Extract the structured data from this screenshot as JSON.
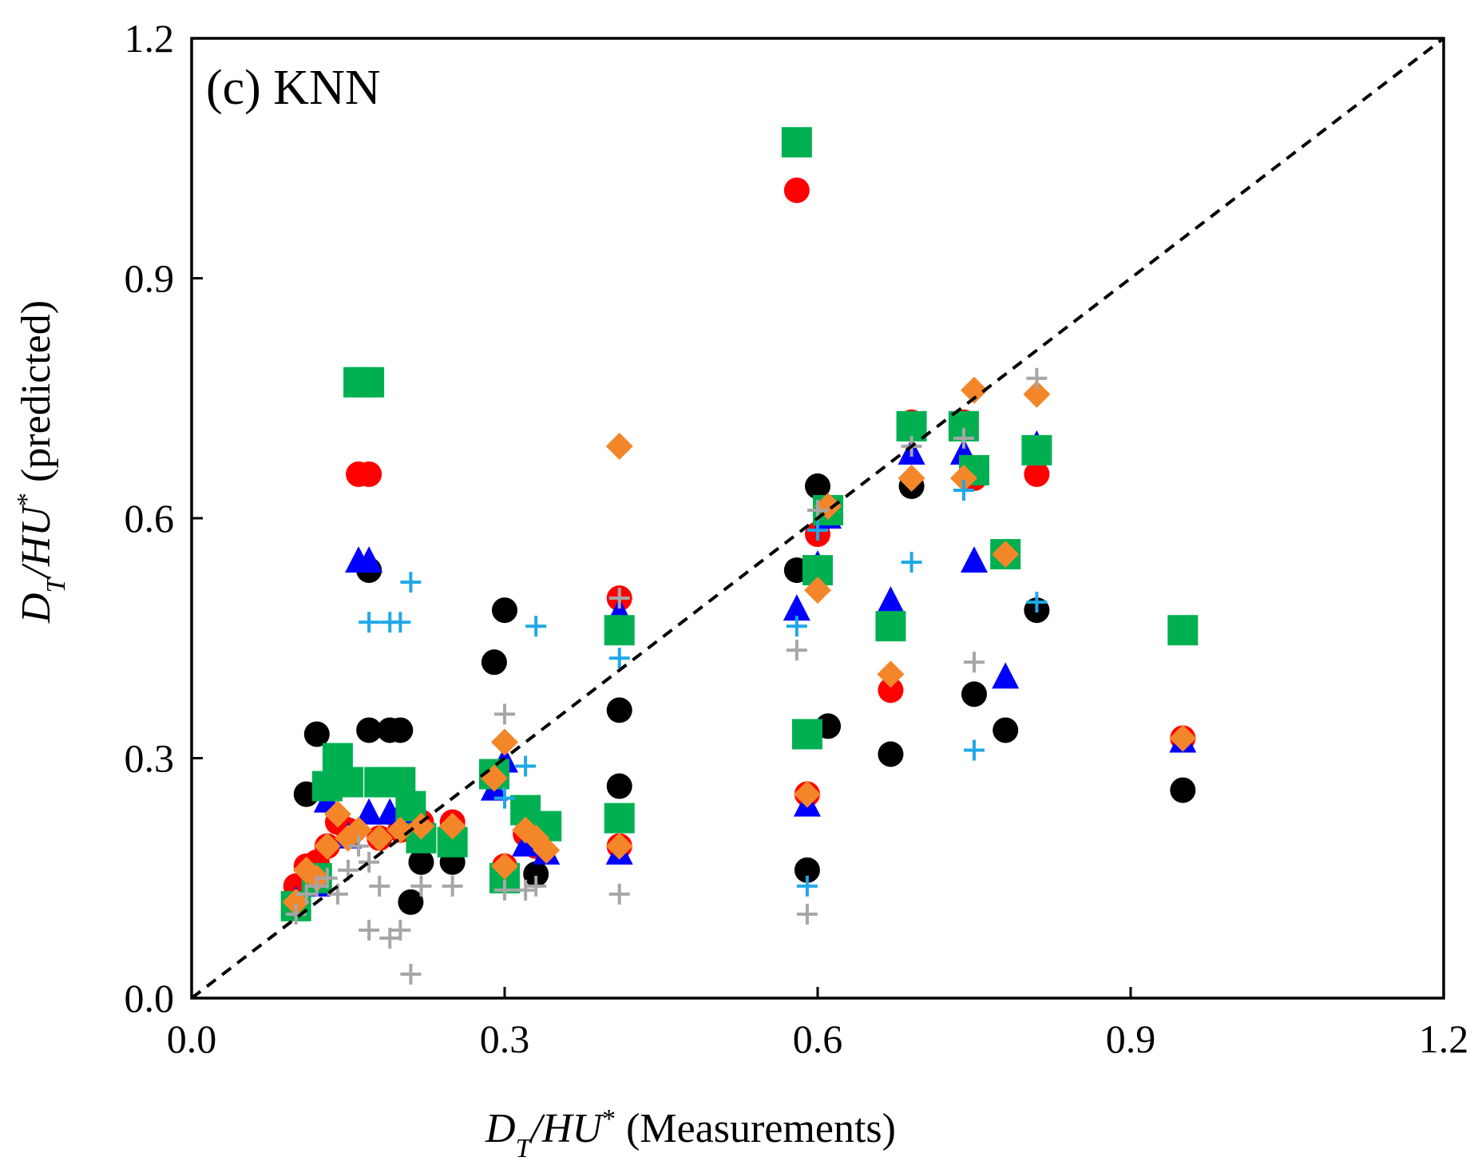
{
  "chart_data": {
    "type": "scatter",
    "panel_label": "(c) KNN",
    "xlabel": {
      "main": "D",
      "sub": "T",
      "mid": "/HU",
      "sup": "*",
      "tail": " (Measurements)"
    },
    "ylabel": {
      "main": "D",
      "sub": "T",
      "mid": "/HU",
      "sup": "*",
      "tail": " (predicted)"
    },
    "xlim": [
      0,
      1.2
    ],
    "ylim": [
      0,
      1.2
    ],
    "x_ticks": [
      "0.0",
      "0.3",
      "0.6",
      "0.9",
      "1.2"
    ],
    "y_ticks": [
      "0.0",
      "0.3",
      "0.6",
      "0.9",
      "1.2"
    ],
    "grid": false,
    "legend": "none",
    "reference_line": {
      "style": "dashed",
      "from": [
        0,
        0
      ],
      "to": [
        1.2,
        1.2
      ]
    },
    "series": [
      {
        "marker": "circle",
        "color": "#000000",
        "points": [
          [
            0.11,
            0.255
          ],
          [
            0.12,
            0.33
          ],
          [
            0.17,
            0.535
          ],
          [
            0.17,
            0.335
          ],
          [
            0.19,
            0.335
          ],
          [
            0.2,
            0.335
          ],
          [
            0.21,
            0.12
          ],
          [
            0.22,
            0.17
          ],
          [
            0.25,
            0.17
          ],
          [
            0.29,
            0.42
          ],
          [
            0.3,
            0.485
          ],
          [
            0.33,
            0.155
          ],
          [
            0.41,
            0.36
          ],
          [
            0.41,
            0.265
          ],
          [
            0.58,
            0.535
          ],
          [
            0.59,
            0.16
          ],
          [
            0.6,
            0.64
          ],
          [
            0.61,
            0.34
          ],
          [
            0.67,
            0.305
          ],
          [
            0.69,
            0.64
          ],
          [
            0.75,
            0.38
          ],
          [
            0.78,
            0.335
          ],
          [
            0.81,
            0.485
          ],
          [
            0.95,
            0.26
          ]
        ]
      },
      {
        "marker": "circle",
        "color": "#ff0000",
        "points": [
          [
            0.1,
            0.14
          ],
          [
            0.11,
            0.165
          ],
          [
            0.12,
            0.17
          ],
          [
            0.13,
            0.19
          ],
          [
            0.14,
            0.22
          ],
          [
            0.15,
            0.21
          ],
          [
            0.16,
            0.655
          ],
          [
            0.17,
            0.655
          ],
          [
            0.18,
            0.2
          ],
          [
            0.2,
            0.21
          ],
          [
            0.22,
            0.22
          ],
          [
            0.25,
            0.22
          ],
          [
            0.3,
            0.165
          ],
          [
            0.32,
            0.205
          ],
          [
            0.33,
            0.19
          ],
          [
            0.41,
            0.5
          ],
          [
            0.41,
            0.19
          ],
          [
            0.58,
            1.01
          ],
          [
            0.59,
            0.255
          ],
          [
            0.6,
            0.58
          ],
          [
            0.67,
            0.385
          ],
          [
            0.69,
            0.72
          ],
          [
            0.74,
            0.72
          ],
          [
            0.75,
            0.65
          ],
          [
            0.81,
            0.655
          ],
          [
            0.95,
            0.325
          ]
        ]
      },
      {
        "marker": "triangle",
        "color": "#0000ff",
        "points": [
          [
            0.1,
            0.12
          ],
          [
            0.12,
            0.14
          ],
          [
            0.13,
            0.245
          ],
          [
            0.15,
            0.2
          ],
          [
            0.16,
            0.545
          ],
          [
            0.17,
            0.545
          ],
          [
            0.17,
            0.23
          ],
          [
            0.19,
            0.23
          ],
          [
            0.2,
            0.23
          ],
          [
            0.22,
            0.2
          ],
          [
            0.25,
            0.2
          ],
          [
            0.29,
            0.26
          ],
          [
            0.3,
            0.295
          ],
          [
            0.32,
            0.19
          ],
          [
            0.34,
            0.18
          ],
          [
            0.41,
            0.48
          ],
          [
            0.41,
            0.18
          ],
          [
            0.58,
            0.485
          ],
          [
            0.59,
            0.24
          ],
          [
            0.6,
            0.54
          ],
          [
            0.61,
            0.6
          ],
          [
            0.67,
            0.495
          ],
          [
            0.69,
            0.68
          ],
          [
            0.74,
            0.68
          ],
          [
            0.75,
            0.545
          ],
          [
            0.78,
            0.4
          ],
          [
            0.81,
            0.69
          ],
          [
            0.95,
            0.32
          ]
        ]
      },
      {
        "marker": "square",
        "color": "#00b050",
        "points": [
          [
            0.1,
            0.115
          ],
          [
            0.12,
            0.15
          ],
          [
            0.13,
            0.265
          ],
          [
            0.14,
            0.3
          ],
          [
            0.15,
            0.27
          ],
          [
            0.16,
            0.77
          ],
          [
            0.17,
            0.77
          ],
          [
            0.18,
            0.27
          ],
          [
            0.19,
            0.27
          ],
          [
            0.2,
            0.27
          ],
          [
            0.21,
            0.24
          ],
          [
            0.22,
            0.2
          ],
          [
            0.25,
            0.195
          ],
          [
            0.29,
            0.28
          ],
          [
            0.3,
            0.15
          ],
          [
            0.32,
            0.235
          ],
          [
            0.34,
            0.215
          ],
          [
            0.41,
            0.46
          ],
          [
            0.41,
            0.225
          ],
          [
            0.58,
            1.07
          ],
          [
            0.59,
            0.33
          ],
          [
            0.6,
            0.535
          ],
          [
            0.61,
            0.61
          ],
          [
            0.67,
            0.465
          ],
          [
            0.69,
            0.715
          ],
          [
            0.74,
            0.715
          ],
          [
            0.75,
            0.66
          ],
          [
            0.78,
            0.555
          ],
          [
            0.81,
            0.685
          ],
          [
            0.95,
            0.46
          ]
        ]
      },
      {
        "marker": "diamond",
        "color": "#f4862a",
        "points": [
          [
            0.1,
            0.12
          ],
          [
            0.11,
            0.16
          ],
          [
            0.12,
            0.15
          ],
          [
            0.13,
            0.19
          ],
          [
            0.14,
            0.23
          ],
          [
            0.15,
            0.2
          ],
          [
            0.16,
            0.21
          ],
          [
            0.18,
            0.2
          ],
          [
            0.2,
            0.21
          ],
          [
            0.22,
            0.215
          ],
          [
            0.25,
            0.215
          ],
          [
            0.29,
            0.275
          ],
          [
            0.3,
            0.32
          ],
          [
            0.3,
            0.165
          ],
          [
            0.32,
            0.21
          ],
          [
            0.33,
            0.2
          ],
          [
            0.34,
            0.185
          ],
          [
            0.41,
            0.69
          ],
          [
            0.41,
            0.19
          ],
          [
            0.59,
            0.255
          ],
          [
            0.6,
            0.51
          ],
          [
            0.61,
            0.615
          ],
          [
            0.67,
            0.405
          ],
          [
            0.69,
            0.65
          ],
          [
            0.74,
            0.65
          ],
          [
            0.75,
            0.76
          ],
          [
            0.78,
            0.555
          ],
          [
            0.81,
            0.755
          ],
          [
            0.95,
            0.325
          ]
        ]
      },
      {
        "marker": "plus",
        "color": "#1fa8e8",
        "points": [
          [
            0.17,
            0.47
          ],
          [
            0.19,
            0.47
          ],
          [
            0.2,
            0.47
          ],
          [
            0.21,
            0.52
          ],
          [
            0.3,
            0.25
          ],
          [
            0.32,
            0.29
          ],
          [
            0.33,
            0.465
          ],
          [
            0.41,
            0.425
          ],
          [
            0.58,
            0.465
          ],
          [
            0.59,
            0.14
          ],
          [
            0.6,
            0.585
          ],
          [
            0.69,
            0.545
          ],
          [
            0.74,
            0.635
          ],
          [
            0.75,
            0.31
          ],
          [
            0.81,
            0.495
          ]
        ]
      },
      {
        "marker": "plus",
        "color": "#a6a6a6",
        "points": [
          [
            0.1,
            0.105
          ],
          [
            0.11,
            0.13
          ],
          [
            0.12,
            0.14
          ],
          [
            0.13,
            0.15
          ],
          [
            0.14,
            0.13
          ],
          [
            0.15,
            0.16
          ],
          [
            0.16,
            0.19
          ],
          [
            0.17,
            0.085
          ],
          [
            0.17,
            0.17
          ],
          [
            0.18,
            0.14
          ],
          [
            0.19,
            0.075
          ],
          [
            0.2,
            0.085
          ],
          [
            0.21,
            0.03
          ],
          [
            0.22,
            0.14
          ],
          [
            0.25,
            0.14
          ],
          [
            0.3,
            0.355
          ],
          [
            0.3,
            0.135
          ],
          [
            0.32,
            0.135
          ],
          [
            0.33,
            0.14
          ],
          [
            0.41,
            0.5
          ],
          [
            0.41,
            0.13
          ],
          [
            0.58,
            0.435
          ],
          [
            0.59,
            0.105
          ],
          [
            0.6,
            0.61
          ],
          [
            0.69,
            0.69
          ],
          [
            0.74,
            0.7
          ],
          [
            0.75,
            0.42
          ],
          [
            0.81,
            0.775
          ]
        ]
      }
    ]
  }
}
